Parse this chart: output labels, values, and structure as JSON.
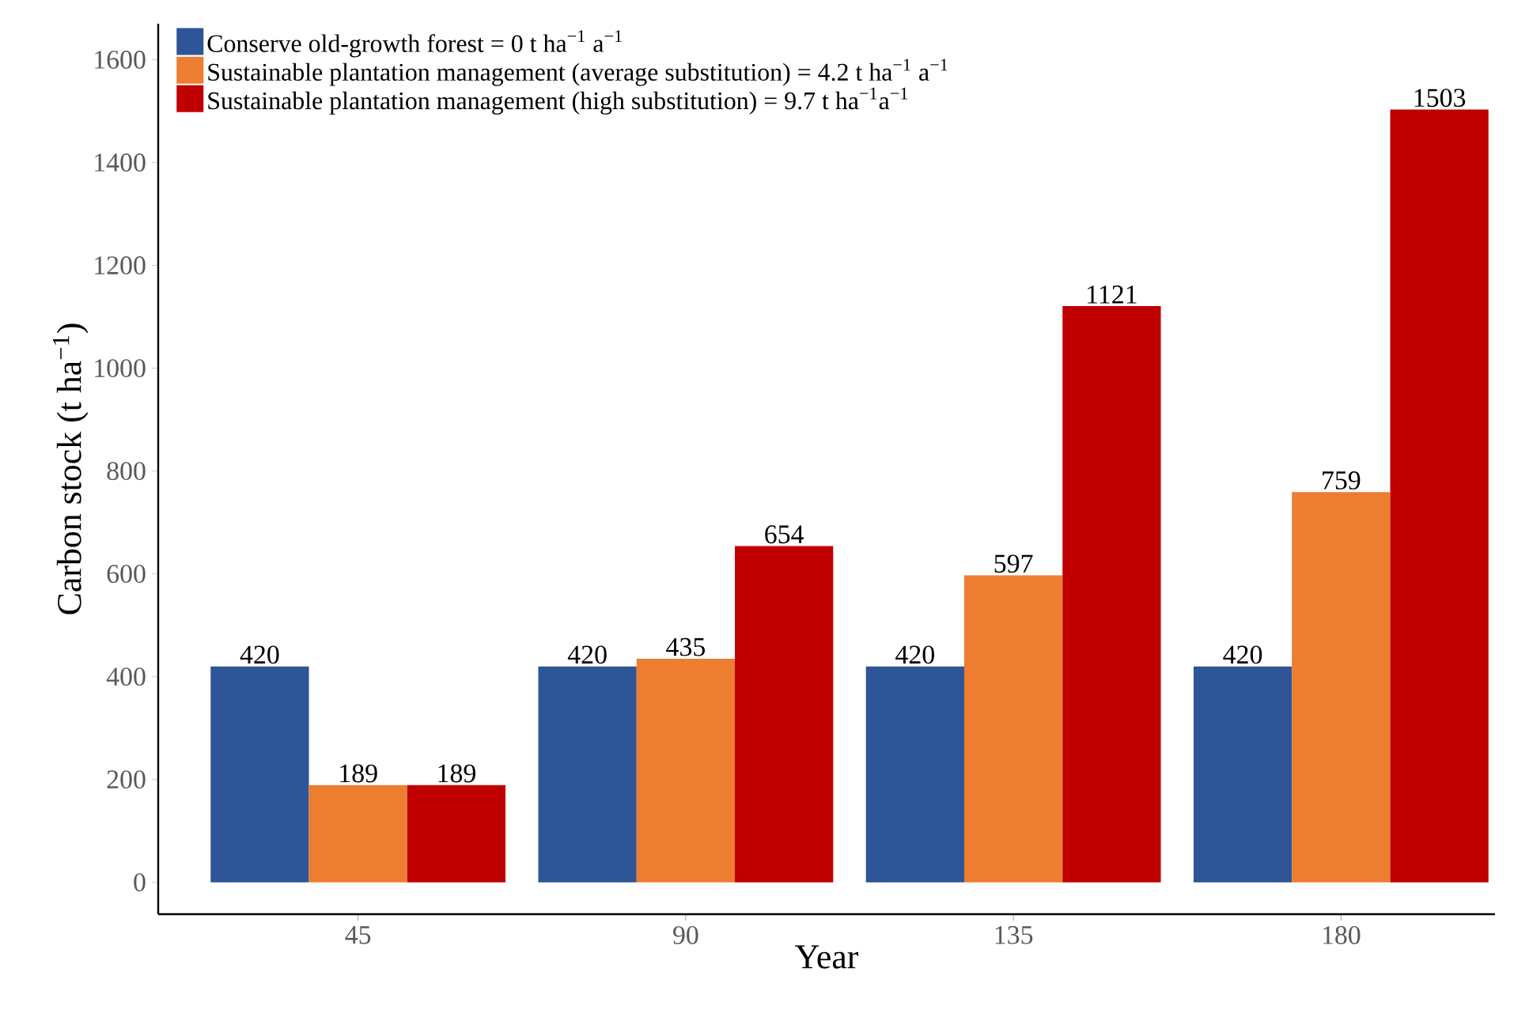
{
  "chart_data": {
    "type": "bar",
    "xlabel": "Year",
    "ylabel": "Carbon stock (t ha$^{−1}$)",
    "categories": [
      "45",
      "90",
      "135",
      "180"
    ],
    "series": [
      {
        "name": "Conserve old-growth forest = 0 t ha$^{−1}$ a$^{−1}$",
        "color": "#2e5597",
        "values": [
          420,
          420,
          420,
          420
        ]
      },
      {
        "name": "Sustainable plantation management (average substitution) = 4.2 t ha$^{−1}$ a$^{−1}$",
        "color": "#ed7d31",
        "values": [
          189,
          435,
          597,
          759
        ]
      },
      {
        "name": "Sustainable plantation management (high substitution) = 9.7 t ha$^{−1}$a$^{−1}$",
        "color": "#c00000",
        "values": [
          189,
          654,
          1121,
          1503
        ]
      }
    ],
    "ylim": [
      -62,
      1670
    ],
    "yticks": [
      0,
      200,
      400,
      600,
      800,
      1000,
      1200,
      1400,
      1600
    ],
    "data_labels": true,
    "legend": "top left",
    "grid": false
  }
}
